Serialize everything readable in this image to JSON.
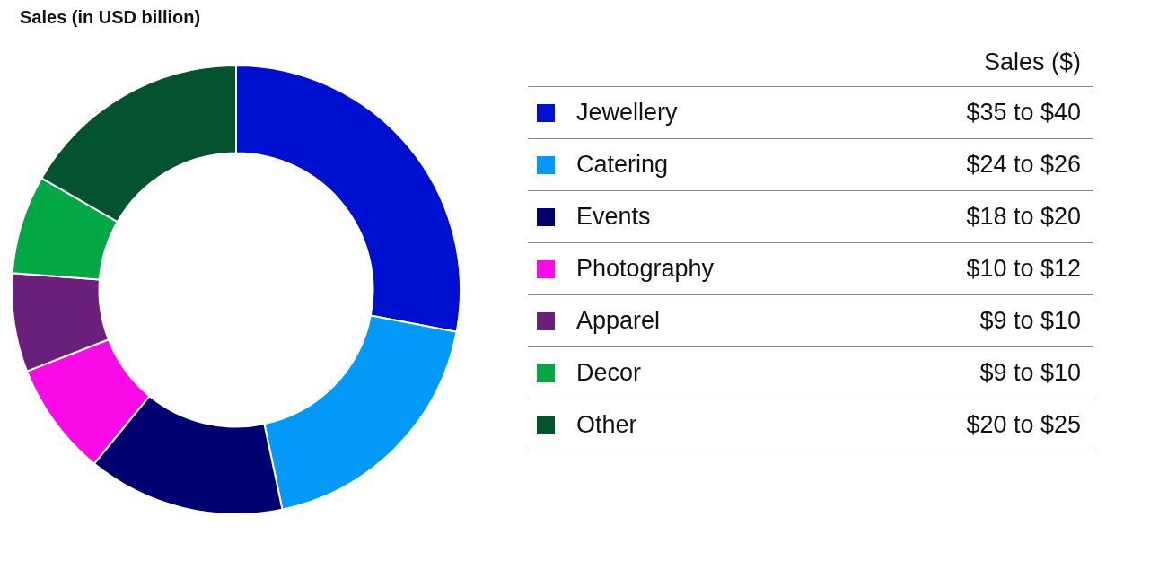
{
  "chart_data": {
    "type": "donut",
    "title": "Sales (in USD billion)",
    "legend_title": "Sales ($)",
    "legend": "right",
    "categories": [
      "Jewellery",
      "Catering",
      "Events",
      "Photography",
      "Apparel",
      "Decor",
      "Other"
    ],
    "values": [
      28.0,
      18.7,
      14.2,
      8.2,
      7.1,
      7.1,
      16.7
    ],
    "annotations": [
      "$35 to $40",
      "$24 to $26",
      "$18 to $20",
      "$10 to $12",
      "$9 to $10",
      "$9 to $10",
      "$20 to $25"
    ],
    "colors": [
      "#0010d0",
      "#0399f8",
      "#000070",
      "#fa0ae6",
      "#6a1f7a",
      "#02a843",
      "#02532e"
    ]
  }
}
